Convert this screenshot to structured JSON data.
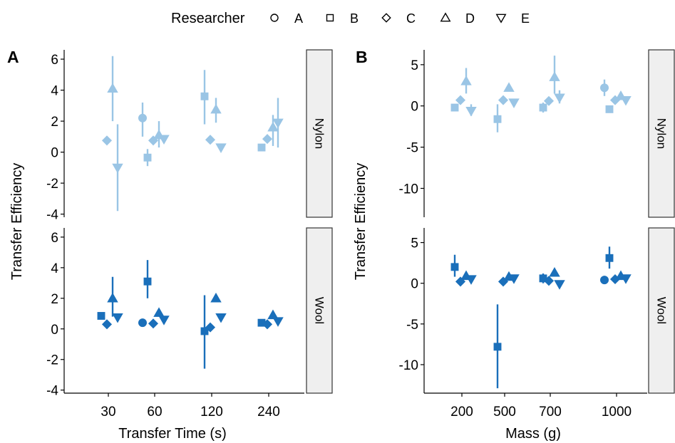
{
  "legend": {
    "title": "Researcher",
    "entries": [
      {
        "label": "A",
        "shape": "circle"
      },
      {
        "label": "B",
        "shape": "square"
      },
      {
        "label": "C",
        "shape": "diamond"
      },
      {
        "label": "D",
        "shape": "triangle-up"
      },
      {
        "label": "E",
        "shape": "triangle-down"
      }
    ]
  },
  "colors": {
    "nylon": "#9ac5e5",
    "wool": "#1a6fba",
    "strip_fill": "#efefef"
  },
  "chart_data": [
    {
      "panel_label": "A",
      "type": "scatter",
      "xlabel": "Transfer Time (s)",
      "ylabel": "Transfer Efficiency",
      "categories": [
        "30",
        "60",
        "120",
        "240"
      ],
      "facets": [
        {
          "strip": "Nylon",
          "color": "nylon",
          "ylim": [
            -4.2,
            6.6
          ],
          "yticks": [
            -4,
            -2,
            0,
            2,
            4,
            6
          ],
          "points": [
            {
              "cat": 0,
              "r": "C",
              "y": 0.75
            },
            {
              "cat": 0,
              "r": "D",
              "y": 4.1,
              "lo": 2.0,
              "hi": 6.2
            },
            {
              "cat": 0,
              "r": "E",
              "y": -1.0,
              "lo": -3.8,
              "hi": 1.8
            },
            {
              "cat": 1,
              "r": "A",
              "y": 2.2,
              "lo": 1.0,
              "hi": 3.2
            },
            {
              "cat": 1,
              "r": "B",
              "y": -0.35,
              "lo": -0.9,
              "hi": 0.2
            },
            {
              "cat": 1,
              "r": "C",
              "y": 0.75
            },
            {
              "cat": 1,
              "r": "D",
              "y": 1.1,
              "lo": 0.3,
              "hi": 2.0
            },
            {
              "cat": 1,
              "r": "E",
              "y": 0.85
            },
            {
              "cat": 2,
              "r": "B",
              "y": 3.6,
              "lo": 1.8,
              "hi": 5.3
            },
            {
              "cat": 2,
              "r": "D",
              "y": 2.75,
              "lo": 1.9,
              "hi": 3.5
            },
            {
              "cat": 2,
              "r": "C",
              "y": 0.8
            },
            {
              "cat": 2,
              "r": "E",
              "y": 0.3
            },
            {
              "cat": 3,
              "r": "B",
              "y": 0.3
            },
            {
              "cat": 3,
              "r": "C",
              "y": 0.85
            },
            {
              "cat": 3,
              "r": "D",
              "y": 1.6,
              "lo": 0.4,
              "hi": 2.4
            },
            {
              "cat": 3,
              "r": "E",
              "y": 1.9,
              "lo": 0.3,
              "hi": 3.5
            }
          ]
        },
        {
          "strip": "Wool",
          "color": "wool",
          "ylim": [
            -4.2,
            6.6
          ],
          "yticks": [
            -4,
            -2,
            0,
            2,
            4,
            6
          ],
          "points": [
            {
              "cat": 0,
              "r": "B",
              "y": 0.85
            },
            {
              "cat": 0,
              "r": "C",
              "y": 0.3
            },
            {
              "cat": 0,
              "r": "D",
              "y": 2.0,
              "lo": 0.8,
              "hi": 3.4
            },
            {
              "cat": 0,
              "r": "E",
              "y": 0.75
            },
            {
              "cat": 1,
              "r": "A",
              "y": 0.4
            },
            {
              "cat": 1,
              "r": "B",
              "y": 3.1,
              "lo": 2.0,
              "hi": 4.5
            },
            {
              "cat": 1,
              "r": "C",
              "y": 0.35
            },
            {
              "cat": 1,
              "r": "D",
              "y": 1.05
            },
            {
              "cat": 1,
              "r": "E",
              "y": 0.6
            },
            {
              "cat": 2,
              "r": "B",
              "y": -0.15,
              "lo": -2.6,
              "hi": 2.2
            },
            {
              "cat": 2,
              "r": "C",
              "y": 0.1
            },
            {
              "cat": 2,
              "r": "D",
              "y": 2.0
            },
            {
              "cat": 2,
              "r": "E",
              "y": 0.75
            },
            {
              "cat": 3,
              "r": "B",
              "y": 0.4
            },
            {
              "cat": 3,
              "r": "C",
              "y": 0.3
            },
            {
              "cat": 3,
              "r": "D",
              "y": 0.9
            },
            {
              "cat": 3,
              "r": "E",
              "y": 0.5
            }
          ]
        }
      ]
    },
    {
      "panel_label": "B",
      "type": "scatter",
      "xlabel": "Mass (g)",
      "ylabel": "Transfer Efficiency",
      "categories": [
        "200",
        "500",
        "700",
        "1000"
      ],
      "facets": [
        {
          "strip": "Nylon",
          "color": "nylon",
          "ylim": [
            -13.5,
            6.8
          ],
          "yticks": [
            -10,
            -5,
            0,
            5
          ],
          "points": [
            {
              "cat": 0,
              "r": "B",
              "y": -0.2
            },
            {
              "cat": 0,
              "r": "C",
              "y": 0.7
            },
            {
              "cat": 0,
              "r": "D",
              "y": 3.0,
              "lo": 1.5,
              "hi": 4.6
            },
            {
              "cat": 0,
              "r": "E",
              "y": -0.6,
              "lo": -1.2,
              "hi": 0.2
            },
            {
              "cat": 1,
              "r": "B",
              "y": -1.6,
              "lo": -3.2,
              "hi": 0.2
            },
            {
              "cat": 1,
              "r": "C",
              "y": 0.7
            },
            {
              "cat": 1,
              "r": "D",
              "y": 2.2
            },
            {
              "cat": 1,
              "r": "E",
              "y": 0.4
            },
            {
              "cat": 2,
              "r": "B",
              "y": -0.2,
              "lo": -0.8,
              "hi": 0.4
            },
            {
              "cat": 2,
              "r": "C",
              "y": 0.6
            },
            {
              "cat": 2,
              "r": "D",
              "y": 3.5,
              "lo": 1.5,
              "hi": 6.1
            },
            {
              "cat": 2,
              "r": "E",
              "y": 1.0,
              "lo": 0.3,
              "hi": 1.9
            },
            {
              "cat": 3,
              "r": "A",
              "y": 2.2,
              "lo": 1.2,
              "hi": 3.2
            },
            {
              "cat": 3,
              "r": "B",
              "y": -0.4
            },
            {
              "cat": 3,
              "r": "D",
              "y": 1.2
            },
            {
              "cat": 3,
              "r": "C",
              "y": 0.7
            },
            {
              "cat": 3,
              "r": "E",
              "y": 0.7
            }
          ]
        },
        {
          "strip": "Wool",
          "color": "wool",
          "ylim": [
            -13.5,
            6.8
          ],
          "yticks": [
            -10,
            -5,
            0,
            5
          ],
          "points": [
            {
              "cat": 0,
              "r": "B",
              "y": 2.0,
              "lo": 0.8,
              "hi": 3.5
            },
            {
              "cat": 0,
              "r": "C",
              "y": 0.2
            },
            {
              "cat": 0,
              "r": "D",
              "y": 0.9
            },
            {
              "cat": 0,
              "r": "E",
              "y": 0.5
            },
            {
              "cat": 1,
              "r": "B",
              "y": -7.8,
              "lo": -12.9,
              "hi": -2.6
            },
            {
              "cat": 1,
              "r": "C",
              "y": 0.2
            },
            {
              "cat": 1,
              "r": "D",
              "y": 0.8
            },
            {
              "cat": 1,
              "r": "E",
              "y": 0.6
            },
            {
              "cat": 2,
              "r": "B",
              "y": 0.6,
              "lo": 0.0,
              "hi": 1.2
            },
            {
              "cat": 2,
              "r": "C",
              "y": 0.3
            },
            {
              "cat": 2,
              "r": "D",
              "y": 1.3
            },
            {
              "cat": 2,
              "r": "E",
              "y": -0.1
            },
            {
              "cat": 3,
              "r": "A",
              "y": 0.4
            },
            {
              "cat": 3,
              "r": "B",
              "y": 3.1,
              "lo": 1.8,
              "hi": 4.5
            },
            {
              "cat": 3,
              "r": "C",
              "y": 0.5
            },
            {
              "cat": 3,
              "r": "D",
              "y": 0.9
            },
            {
              "cat": 3,
              "r": "E",
              "y": 0.6
            }
          ]
        }
      ]
    }
  ]
}
